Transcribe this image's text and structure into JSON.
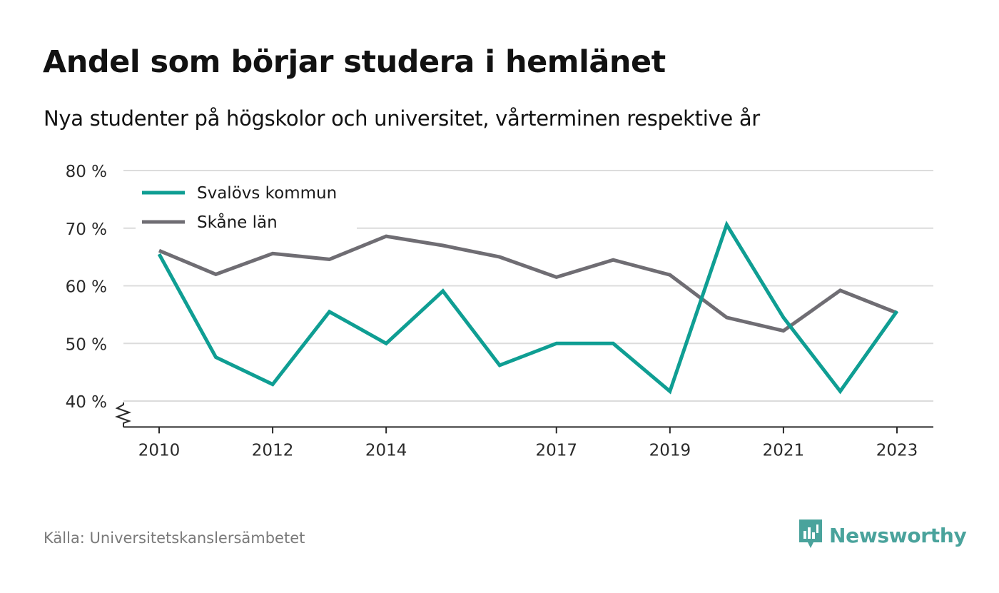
{
  "header": {
    "title": "Andel som börjar studera i hemlänet",
    "subtitle": "Nya studenter på högskolor och universitet, vårterminen respektive år"
  },
  "footer": {
    "source": "Källa: Universitetskanslersämbetet",
    "brand": "Newsworthy",
    "brand_icon": "newsworthy-logo-icon",
    "brand_color": "#4aa39c"
  },
  "chart_data": {
    "type": "line",
    "title": "Andel som börjar studera i hemlänet",
    "subtitle": "Nya studenter på högskolor och universitet, vårterminen respektive år",
    "xlabel": "",
    "ylabel": "",
    "x": [
      2010,
      2011,
      2012,
      2013,
      2014,
      2015,
      2016,
      2017,
      2018,
      2019,
      2020,
      2021,
      2022,
      2023
    ],
    "x_tick_values": [
      2010,
      2012,
      2014,
      2017,
      2019,
      2021,
      2023
    ],
    "x_tick_labels": [
      "2010",
      "2012",
      "2014",
      "2017",
      "2019",
      "2021",
      "2023"
    ],
    "y_tick_values": [
      40,
      50,
      60,
      70,
      80
    ],
    "y_tick_labels": [
      "40 %",
      "50 %",
      "60 %",
      "70 %",
      "80 %"
    ],
    "ylim": [
      35.5,
      80
    ],
    "y_axis_break": true,
    "grid": "horizontal",
    "legend_position": "top-left",
    "series": [
      {
        "name": "Svalövs kommun",
        "color": "#0f9e93",
        "values": [
          65.5,
          47.6,
          42.9,
          55.5,
          50.0,
          59.1,
          46.2,
          50.0,
          50.0,
          41.7,
          70.6,
          54.5,
          41.7,
          55.6
        ]
      },
      {
        "name": "Skåne län",
        "color": "#6f6d73",
        "values": [
          66.1,
          62.0,
          65.6,
          64.6,
          68.6,
          67.0,
          65.0,
          61.5,
          64.5,
          61.9,
          54.5,
          52.2,
          59.2,
          55.3
        ]
      }
    ]
  }
}
